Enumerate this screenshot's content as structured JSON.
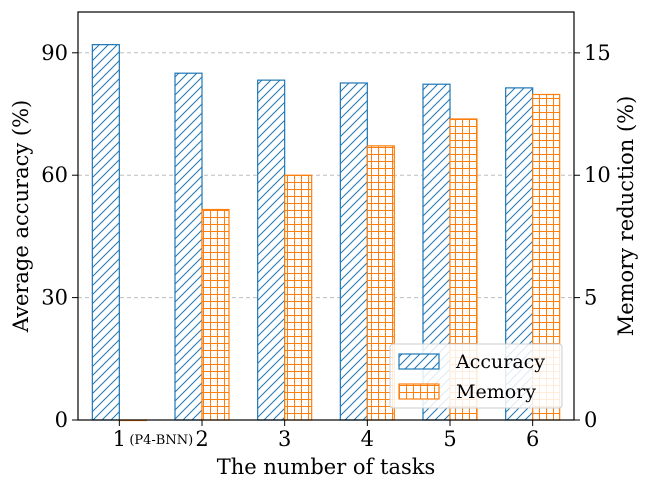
{
  "chart_data": {
    "type": "bar",
    "categories": [
      "1",
      "2",
      "3",
      "4",
      "5",
      "6"
    ],
    "category_annotations": [
      "(P4-BNN)",
      "",
      "",
      "",
      "",
      ""
    ],
    "xlabel": "The number of tasks",
    "ylabel_left": "Average accuracy (%)",
    "ylabel_right": "Memory reduction (%)",
    "ylim_left": [
      0,
      100
    ],
    "ylim_right": [
      0,
      16.67
    ],
    "yticks_left": [
      "0",
      "30",
      "60",
      "90"
    ],
    "yticks_right": [
      "0",
      "5",
      "10",
      "15"
    ],
    "yticks_left_values": [
      0,
      30,
      60,
      90
    ],
    "yticks_right_values": [
      0,
      5,
      10,
      15
    ],
    "grid": "horizontal dashed",
    "legend_position": "lower-right",
    "series": [
      {
        "name": "Accuracy",
        "axis": "left",
        "hatch": "diagonal",
        "color": "#1f77b4",
        "values": [
          92.0,
          85.0,
          83.3,
          82.6,
          82.3,
          81.4
        ]
      },
      {
        "name": "Memory",
        "axis": "right",
        "hatch": "grid",
        "color": "#ff7f0e",
        "values": [
          0,
          8.6,
          10.0,
          11.2,
          12.3,
          13.3
        ]
      }
    ]
  }
}
